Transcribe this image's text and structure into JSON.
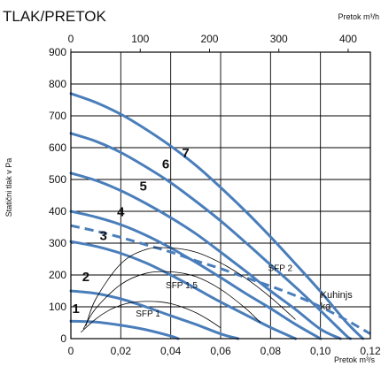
{
  "chart_data": {
    "type": "line",
    "title": "TLAK/PRETOK",
    "ylabel": "Statični tlak v Pa",
    "xlabel": "Pretok m³/s",
    "x2label": "Pretok m³/h",
    "xlim": [
      0,
      0.12
    ],
    "x2lim": [
      0,
      432
    ],
    "ylim": [
      0,
      900
    ],
    "x_ticks": [
      "0",
      "0,02",
      "0,04",
      "0,06",
      "0,08",
      "0,10",
      "0,12"
    ],
    "x_tick_values": [
      0,
      0.02,
      0.04,
      0.06,
      0.08,
      0.1,
      0.12
    ],
    "x2_ticks": [
      "0",
      "100",
      "200",
      "300",
      "400"
    ],
    "x2_tick_values": [
      0,
      100,
      200,
      300,
      400
    ],
    "y_ticks": [
      "0",
      "100",
      "200",
      "300",
      "400",
      "500",
      "600",
      "700",
      "800",
      "900"
    ],
    "y_tick_values": [
      0,
      100,
      200,
      300,
      400,
      500,
      600,
      700,
      800,
      900
    ],
    "grid": true,
    "series": [
      {
        "name": "1",
        "color": "#4a7ebb",
        "style": "solid",
        "x": [
          0,
          0.01,
          0.02,
          0.03,
          0.04,
          0.043
        ],
        "y": [
          55,
          52,
          42,
          28,
          8,
          0
        ]
      },
      {
        "name": "2",
        "color": "#4a7ebb",
        "style": "solid",
        "x": [
          0,
          0.01,
          0.02,
          0.03,
          0.04,
          0.05,
          0.06,
          0.067
        ],
        "y": [
          150,
          142,
          125,
          100,
          72,
          45,
          15,
          0
        ]
      },
      {
        "name": "3",
        "color": "#4a7ebb",
        "style": "solid",
        "x": [
          0,
          0.01,
          0.02,
          0.03,
          0.04,
          0.05,
          0.06,
          0.07,
          0.08,
          0.09
        ],
        "y": [
          305,
          290,
          268,
          238,
          200,
          158,
          115,
          75,
          35,
          0
        ]
      },
      {
        "name": "4",
        "color": "#4a7ebb",
        "style": "solid",
        "x": [
          0,
          0.01,
          0.02,
          0.03,
          0.04,
          0.05,
          0.06,
          0.07,
          0.08,
          0.09,
          0.1
        ],
        "y": [
          400,
          382,
          358,
          325,
          285,
          240,
          192,
          142,
          95,
          45,
          0
        ]
      },
      {
        "name": "5",
        "color": "#4a7ebb",
        "style": "solid",
        "x": [
          0,
          0.01,
          0.02,
          0.03,
          0.04,
          0.05,
          0.06,
          0.07,
          0.08,
          0.09,
          0.1,
          0.108
        ],
        "y": [
          520,
          497,
          465,
          425,
          380,
          330,
          272,
          212,
          150,
          92,
          30,
          0
        ]
      },
      {
        "name": "6",
        "color": "#4a7ebb",
        "style": "solid",
        "x": [
          0,
          0.01,
          0.02,
          0.03,
          0.04,
          0.05,
          0.06,
          0.07,
          0.08,
          0.09,
          0.1,
          0.11,
          0.112
        ],
        "y": [
          645,
          620,
          585,
          540,
          490,
          432,
          370,
          302,
          232,
          162,
          88,
          12,
          0
        ]
      },
      {
        "name": "7",
        "color": "#4a7ebb",
        "style": "solid",
        "x": [
          0,
          0.01,
          0.02,
          0.03,
          0.04,
          0.05,
          0.06,
          0.07,
          0.08,
          0.09,
          0.1,
          0.11,
          0.117
        ],
        "y": [
          770,
          742,
          705,
          658,
          605,
          545,
          475,
          400,
          320,
          235,
          148,
          55,
          0
        ]
      },
      {
        "name": "Kuhinjska",
        "color": "#4a7ebb",
        "style": "dashed",
        "x": [
          0,
          0.01,
          0.02,
          0.03,
          0.04,
          0.05,
          0.06,
          0.07,
          0.08,
          0.09,
          0.1,
          0.11,
          0.12
        ],
        "y": [
          355,
          338,
          318,
          295,
          272,
          245,
          220,
          192,
          165,
          135,
          100,
          60,
          15
        ]
      },
      {
        "name": "SFP 1",
        "color": "#000000",
        "style": "thin",
        "x": [
          0.004,
          0.01,
          0.015,
          0.02,
          0.025,
          0.03,
          0.035,
          0.04,
          0.045,
          0.05,
          0.055,
          0.06
        ],
        "y": [
          20,
          62,
          88,
          105,
          114,
          117,
          116,
          110,
          98,
          82,
          60,
          34
        ]
      },
      {
        "name": "SFP 1,5",
        "color": "#000000",
        "style": "thin",
        "x": [
          0.005,
          0.01,
          0.02,
          0.03,
          0.04,
          0.05,
          0.06,
          0.07,
          0.076
        ],
        "y": [
          30,
          95,
          170,
          205,
          210,
          195,
          155,
          95,
          50
        ]
      },
      {
        "name": "SFP 2",
        "color": "#000000",
        "style": "thin",
        "x": [
          0.006,
          0.01,
          0.02,
          0.03,
          0.04,
          0.05,
          0.06,
          0.07,
          0.08,
          0.09
        ],
        "y": [
          40,
          125,
          235,
          280,
          285,
          272,
          238,
          190,
          130,
          60
        ]
      }
    ],
    "curve_labels": [
      {
        "text": "1",
        "x": 0.002,
        "y": 80
      },
      {
        "text": "2",
        "x": 0.006,
        "y": 180
      },
      {
        "text": "3",
        "x": 0.013,
        "y": 310
      },
      {
        "text": "4",
        "x": 0.02,
        "y": 385
      },
      {
        "text": "5",
        "x": 0.029,
        "y": 465
      },
      {
        "text": "6",
        "x": 0.038,
        "y": 535
      },
      {
        "text": "7",
        "x": 0.046,
        "y": 570
      }
    ],
    "sfp_labels": [
      {
        "text": "SFP 1",
        "x": 0.026,
        "y": 70
      },
      {
        "text": "SFP 1,5",
        "x": 0.038,
        "y": 158
      },
      {
        "text": "SFP 2",
        "x": 0.079,
        "y": 212
      }
    ],
    "annotation": {
      "lines": [
        "Kuhinjs",
        "ka"
      ],
      "x": 0.1,
      "y": 128
    }
  },
  "colors": {
    "curve": "#4a7ebb",
    "grid": "#000000",
    "sfp": "#000000"
  }
}
